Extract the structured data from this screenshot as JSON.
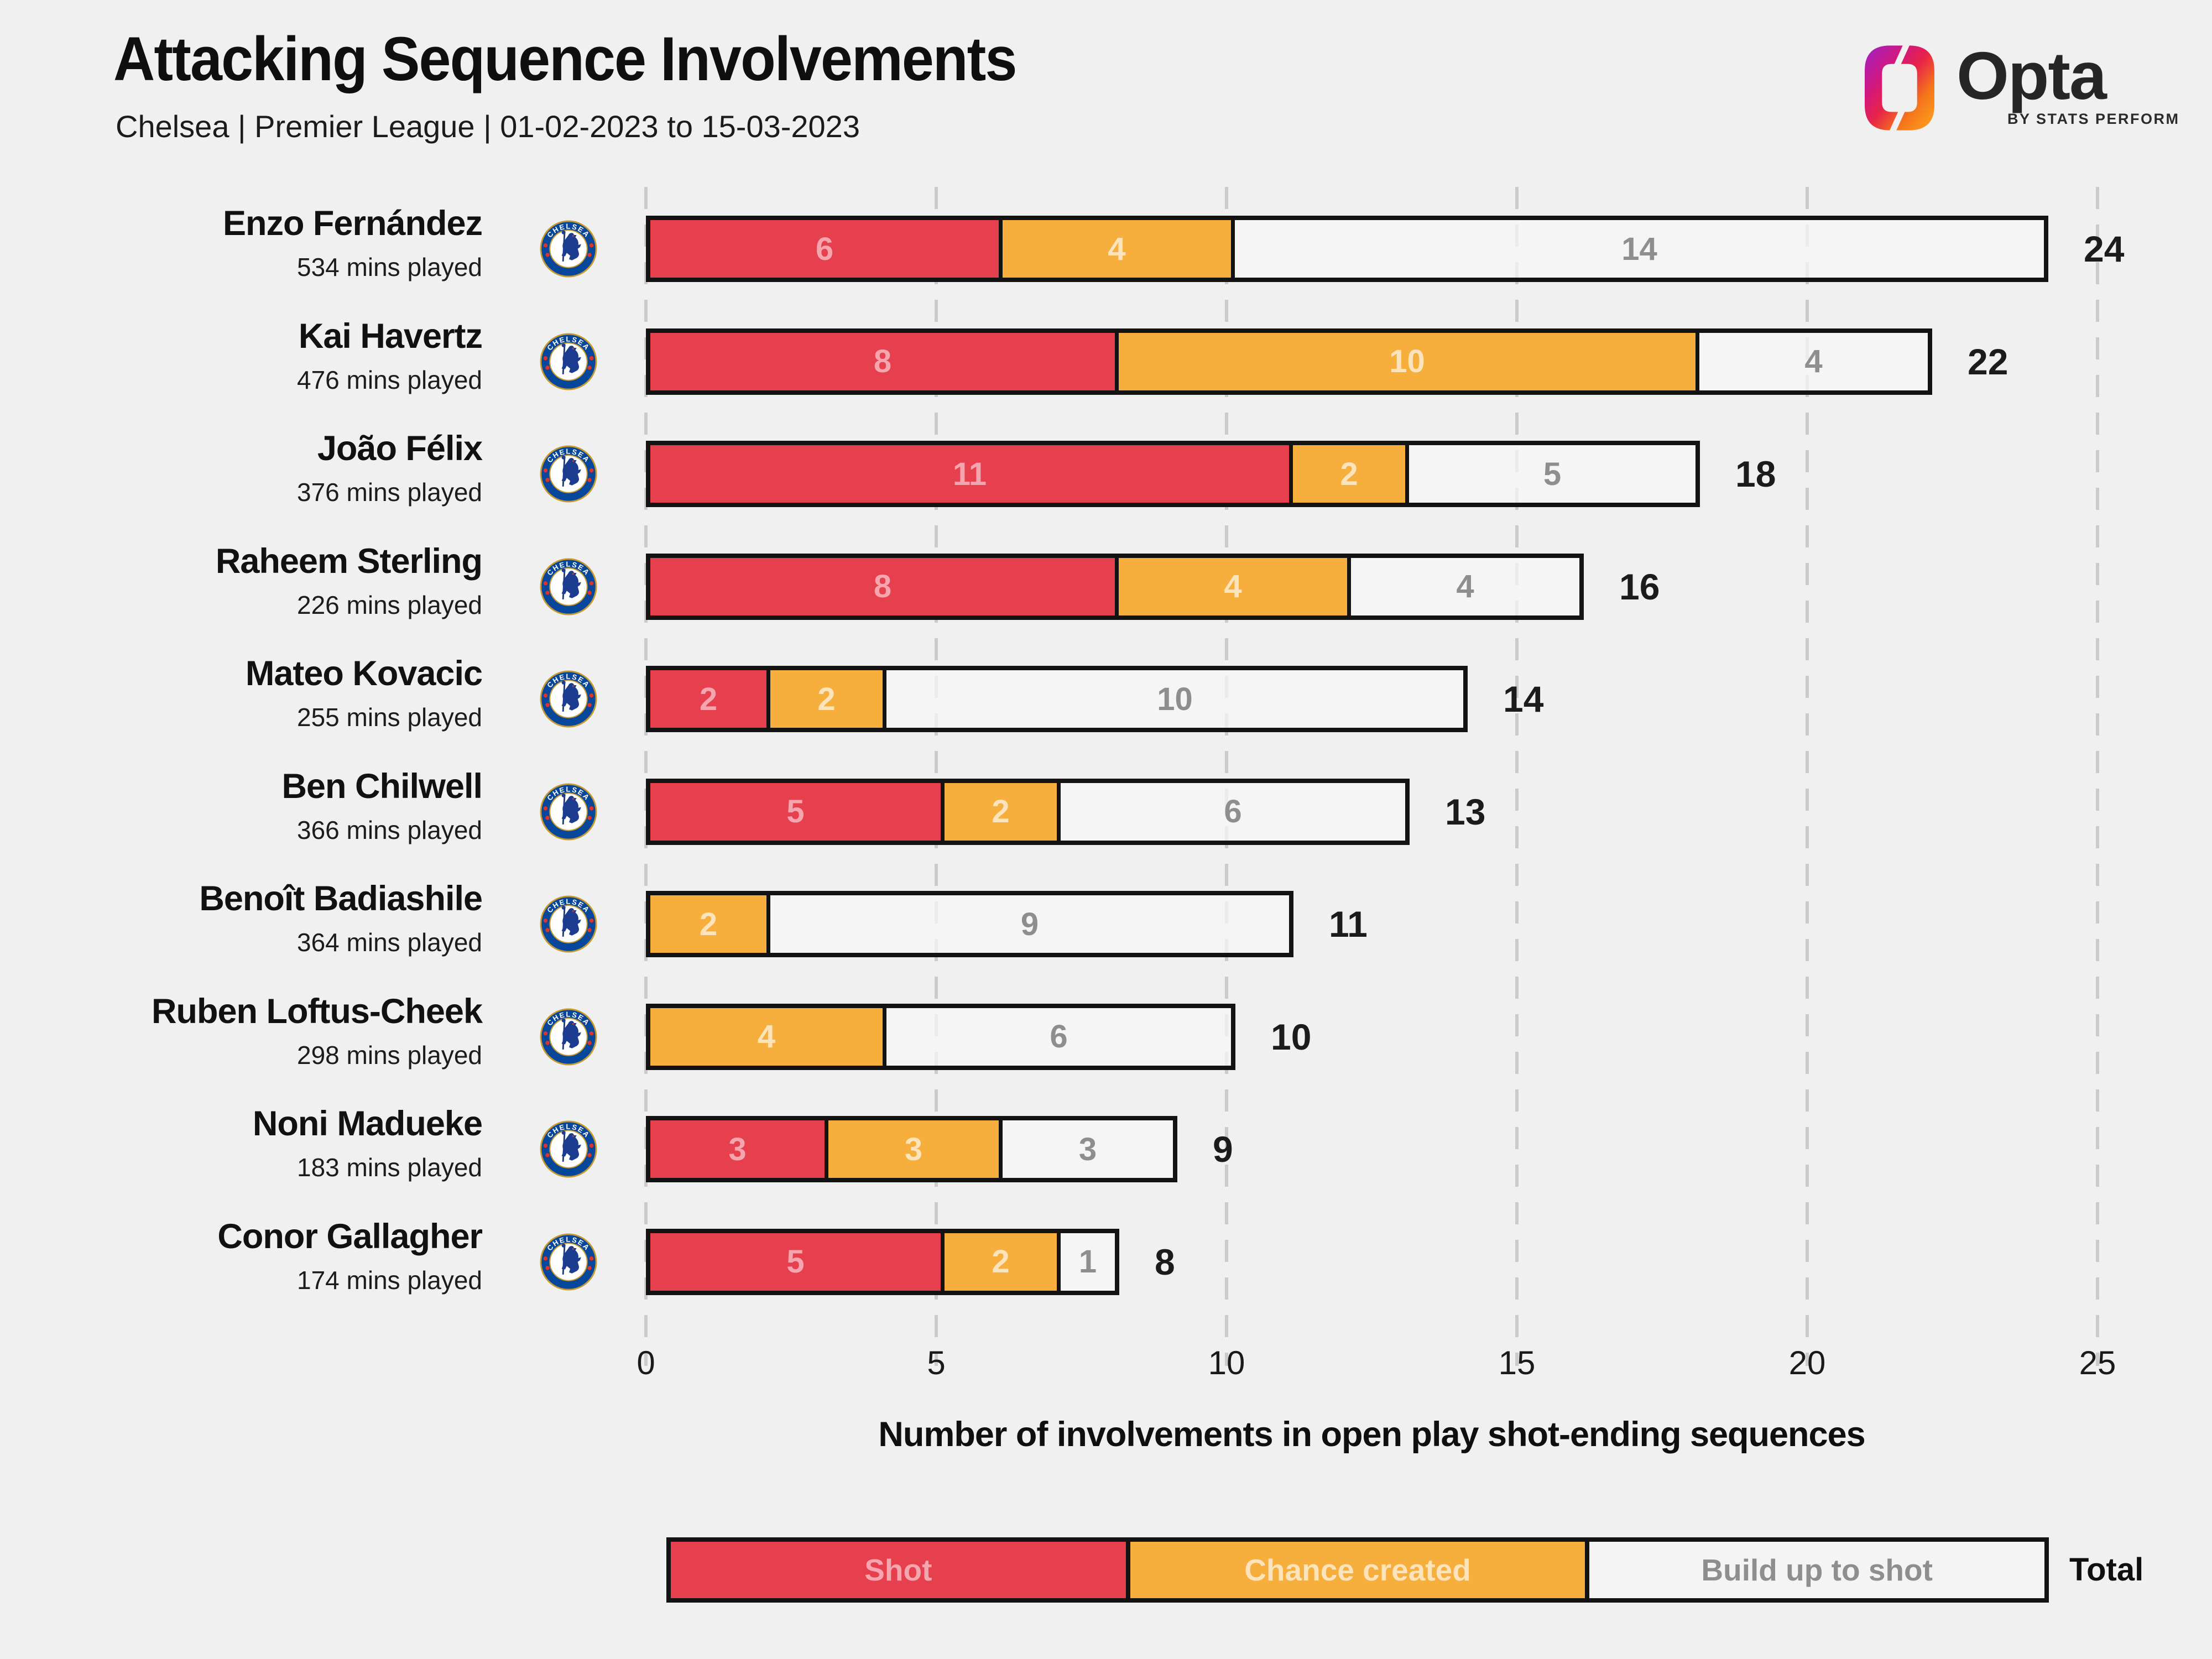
{
  "header": {
    "title": "Attacking Sequence Involvements",
    "subtitle": "Chelsea | Premier League | 01-02-2023 to 15-03-2023"
  },
  "logo": {
    "brand": "Opta",
    "byline": "BY STATS PERFORM"
  },
  "badge": {
    "club": "Chelsea",
    "ring_text_top": "CHELSEA",
    "ring_text_bottom": "FOOTBALL CLUB"
  },
  "players": [
    {
      "name": "Enzo Fernández",
      "mins_label": "534 mins played",
      "values": [
        6,
        4,
        14
      ],
      "total": 24
    },
    {
      "name": "Kai Havertz",
      "mins_label": "476 mins played",
      "values": [
        8,
        10,
        4
      ],
      "total": 22
    },
    {
      "name": "João Félix",
      "mins_label": "376 mins played",
      "values": [
        11,
        2,
        5
      ],
      "total": 18
    },
    {
      "name": "Raheem Sterling",
      "mins_label": "226 mins played",
      "values": [
        8,
        4,
        4
      ],
      "total": 16
    },
    {
      "name": "Mateo Kovacic",
      "mins_label": "255 mins played",
      "values": [
        2,
        2,
        10
      ],
      "total": 14
    },
    {
      "name": "Ben Chilwell",
      "mins_label": "366 mins played",
      "values": [
        5,
        2,
        6
      ],
      "total": 13
    },
    {
      "name": "Benoît Badiashile",
      "mins_label": "364 mins played",
      "values": [
        0,
        2,
        9
      ],
      "total": 11
    },
    {
      "name": "Ruben Loftus-Cheek",
      "mins_label": "298 mins played",
      "values": [
        0,
        4,
        6
      ],
      "total": 10
    },
    {
      "name": "Noni Madueke",
      "mins_label": "183 mins played",
      "values": [
        3,
        3,
        3
      ],
      "total": 9
    },
    {
      "name": "Conor Gallagher",
      "mins_label": "174 mins played",
      "values": [
        5,
        2,
        1
      ],
      "total": 8
    }
  ],
  "chart_data": {
    "type": "bar",
    "stacked": true,
    "orientation": "horizontal",
    "title": "Attacking Sequence Involvements",
    "subtitle": "Chelsea | Premier League | 01-02-2023 to 15-03-2023",
    "categories": [
      "Enzo Fernández",
      "Kai Havertz",
      "João Félix",
      "Raheem Sterling",
      "Mateo Kovacic",
      "Ben Chilwell",
      "Benoît Badiashile",
      "Ruben Loftus-Cheek",
      "Noni Madueke",
      "Conor Gallagher"
    ],
    "mins_played": [
      534,
      476,
      376,
      226,
      255,
      366,
      364,
      298,
      183,
      174
    ],
    "series": [
      {
        "name": "Shot",
        "color": "#E6404E",
        "bar_color": "#E6404E",
        "label_color": "#F4A5AD",
        "values": [
          6,
          8,
          11,
          8,
          2,
          5,
          0,
          0,
          3,
          5
        ]
      },
      {
        "name": "Chance created",
        "color": "#F6AE3D",
        "bar_color": "#F6AE3D",
        "label_color": "#FBE3BB",
        "values": [
          4,
          10,
          2,
          4,
          2,
          2,
          2,
          4,
          3,
          2
        ]
      },
      {
        "name": "Build up to shot",
        "color": "#F4F4F4",
        "bar_color": "rgba(246,246,246,0.72)",
        "label_color": "#8E8E8E",
        "values": [
          14,
          4,
          5,
          4,
          10,
          6,
          9,
          6,
          3,
          1
        ]
      }
    ],
    "totals": [
      24,
      22,
      18,
      16,
      14,
      13,
      11,
      10,
      9,
      8
    ],
    "xlabel": "Number of involvements in open play shot-ending sequences",
    "xticks": [
      0,
      5,
      10,
      15,
      20,
      25
    ],
    "xlim": [
      0,
      25
    ],
    "grid": "vertical-dashed",
    "gridline_color": "#CBCBCB",
    "bar_border_color": "#131313",
    "background_color": "#F0F0F0",
    "legend_position": "bottom"
  },
  "legend": {
    "total_label": "Total"
  }
}
